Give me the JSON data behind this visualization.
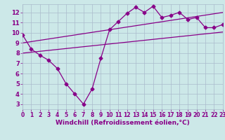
{
  "title": "",
  "xlabel": "Windchill (Refroidissement éolien,°C)",
  "ylabel": "",
  "bg_color": "#cce8e8",
  "line_color": "#880088",
  "grid_color": "#aabbcc",
  "x_data": [
    0,
    1,
    2,
    3,
    4,
    5,
    6,
    7,
    8,
    9,
    10,
    11,
    12,
    13,
    14,
    15,
    16,
    17,
    18,
    19,
    20,
    21,
    22,
    23
  ],
  "y_main": [
    9.8,
    8.4,
    7.8,
    7.3,
    6.5,
    5.0,
    4.0,
    3.0,
    4.5,
    7.5,
    10.3,
    11.1,
    11.9,
    12.5,
    12.0,
    12.6,
    11.5,
    11.7,
    12.0,
    11.3,
    11.5,
    10.5,
    10.5,
    10.8
  ],
  "y_upper": [
    9.0,
    9.13,
    9.26,
    9.39,
    9.52,
    9.65,
    9.78,
    9.91,
    10.04,
    10.17,
    10.3,
    10.43,
    10.56,
    10.69,
    10.82,
    10.95,
    11.08,
    11.21,
    11.34,
    11.47,
    11.6,
    11.73,
    11.86,
    11.99
  ],
  "y_lower": [
    8.0,
    8.09,
    8.18,
    8.27,
    8.36,
    8.45,
    8.54,
    8.63,
    8.72,
    8.81,
    8.9,
    8.99,
    9.08,
    9.17,
    9.26,
    9.35,
    9.44,
    9.53,
    9.62,
    9.71,
    9.8,
    9.89,
    9.98,
    10.07
  ],
  "xlim": [
    0,
    23
  ],
  "ylim": [
    2.5,
    12.8
  ],
  "yticks": [
    3,
    4,
    5,
    6,
    7,
    8,
    9,
    10,
    11,
    12
  ],
  "xticks": [
    0,
    1,
    2,
    3,
    4,
    5,
    6,
    7,
    8,
    9,
    10,
    11,
    12,
    13,
    14,
    15,
    16,
    17,
    18,
    19,
    20,
    21,
    22,
    23
  ],
  "marker": "D",
  "markersize": 2.5,
  "linewidth": 0.9,
  "fontsize_label": 6.5,
  "fontsize_tick": 5.5
}
